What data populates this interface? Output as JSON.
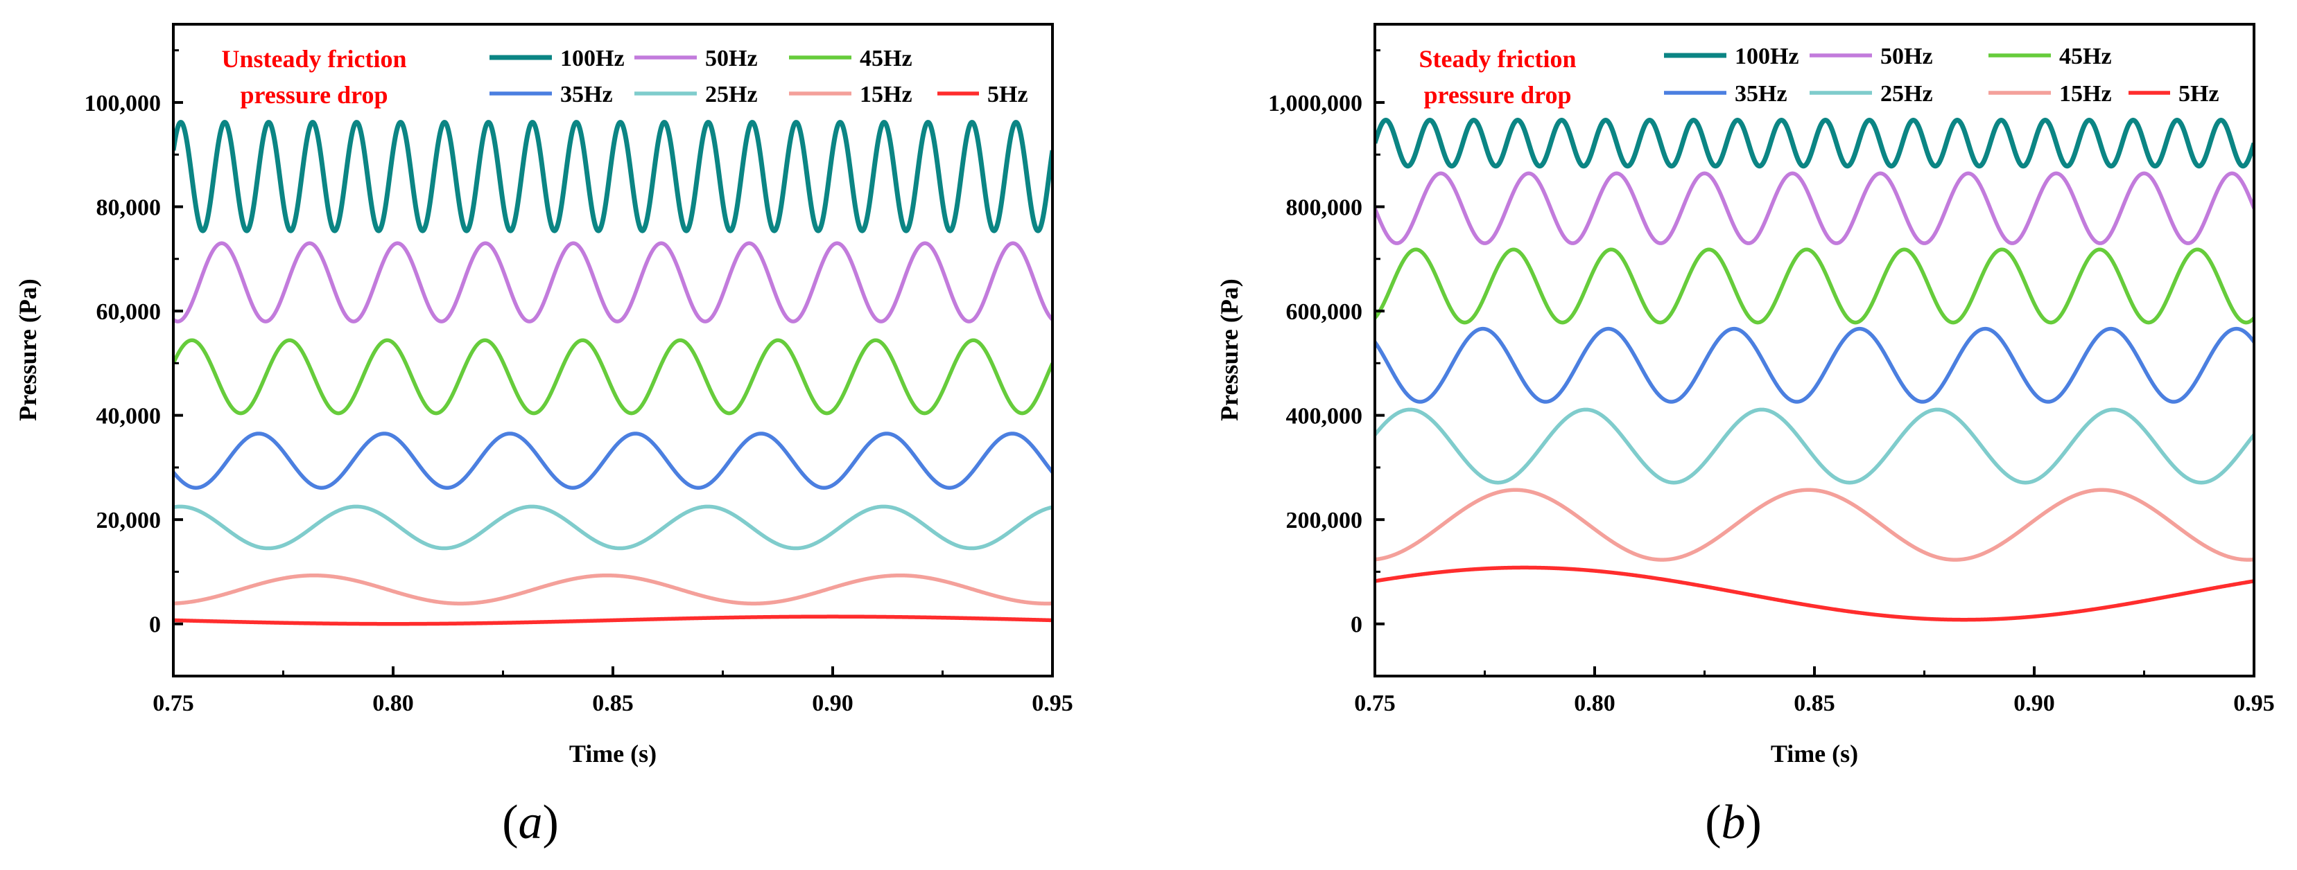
{
  "chart_data": [
    {
      "type": "line",
      "panel": "a",
      "panel_label_open": "(",
      "panel_label_letter": "a",
      "panel_label_close": ")",
      "annotation": [
        "Unsteady friction",
        "pressure drop"
      ],
      "xlabel": "Time (s)",
      "ylabel": "Pressure (Pa)",
      "xlim": [
        0.75,
        0.95
      ],
      "ylim": [
        -10000,
        115000
      ],
      "xticks": [
        0.75,
        0.8,
        0.85,
        0.9,
        0.95
      ],
      "xtick_labels": [
        "0.75",
        "0.80",
        "0.85",
        "0.90",
        "0.95"
      ],
      "yticks": [
        0,
        20000,
        40000,
        60000,
        80000,
        100000
      ],
      "ytick_labels": [
        "0",
        "20,000",
        "40,000",
        "60,000",
        "80,000",
        "100,000"
      ],
      "series": [
        {
          "name": "100Hz",
          "color": "#0b8584",
          "freq": 100,
          "mean": 85800,
          "amp": 10400,
          "phase_cycles": 0.08
        },
        {
          "name": "50Hz",
          "color": "#c27bdc",
          "freq": 50,
          "mean": 65500,
          "amp": 7500,
          "phase_cycles": 0.2
        },
        {
          "name": "45Hz",
          "color": "#66cc3b",
          "freq": 45,
          "mean": 47400,
          "amp": 7000,
          "phase_cycles": 0.31
        },
        {
          "name": "35Hz",
          "color": "#4b7fe0",
          "freq": 35,
          "mean": 31300,
          "amp": 5200,
          "phase_cycles": 0.32
        },
        {
          "name": "25Hz",
          "color": "#7fcccc",
          "freq": 25,
          "mean": 18500,
          "amp": 4000,
          "phase_cycles": 0.46
        },
        {
          "name": "15Hz",
          "color": "#f4a09a",
          "freq": 15,
          "mean": 6600,
          "amp": 2700,
          "phase_cycles": 0.52
        },
        {
          "name": "5Hz",
          "color": "#ff2d2d",
          "freq": 5,
          "mean": 700,
          "amp": 700,
          "phase_cycles": 0.75
        }
      ]
    },
    {
      "type": "line",
      "panel": "b",
      "panel_label_open": "(",
      "panel_label_letter": "b",
      "panel_label_close": ")",
      "annotation": [
        "Steady friction",
        "pressure drop"
      ],
      "xlabel": "Time (s)",
      "ylabel": "Pressure (Pa)",
      "xlim": [
        0.75,
        0.95
      ],
      "ylim": [
        -100000,
        1150000
      ],
      "xticks": [
        0.75,
        0.8,
        0.85,
        0.9,
        0.95
      ],
      "xtick_labels": [
        "0.75",
        "0.80",
        "0.85",
        "0.90",
        "0.95"
      ],
      "yticks": [
        0,
        200000,
        400000,
        600000,
        800000,
        1000000
      ],
      "ytick_labels": [
        "0",
        "200,000",
        "400,000",
        "600,000",
        "800,000",
        "1,000,000"
      ],
      "series": [
        {
          "name": "100Hz",
          "color": "#0b8584",
          "freq": 100,
          "mean": 922000,
          "amp": 44000,
          "phase_cycles": 0.0
        },
        {
          "name": "50Hz",
          "color": "#c27bdc",
          "freq": 50,
          "mean": 797000,
          "amp": 67000,
          "phase_cycles": 0.0
        },
        {
          "name": "45Hz",
          "color": "#66cc3b",
          "freq": 45,
          "mean": 648000,
          "amp": 70000,
          "phase_cycles": 0.08
        },
        {
          "name": "35Hz",
          "color": "#4b7fe0",
          "freq": 35,
          "mean": 496000,
          "amp": 70000,
          "phase_cycles": 0.14
        },
        {
          "name": "25Hz",
          "color": "#7fcccc",
          "freq": 25,
          "mean": 341000,
          "amp": 70000,
          "phase_cycles": 0.3
        },
        {
          "name": "15Hz",
          "color": "#f4a09a",
          "freq": 15,
          "mean": 190000,
          "amp": 67000,
          "phase_cycles": 0.52
        },
        {
          "name": "5Hz",
          "color": "#ff2d2d",
          "freq": 5,
          "mean": 58000,
          "amp": 50000,
          "phase_cycles": 0.33
        }
      ]
    }
  ]
}
